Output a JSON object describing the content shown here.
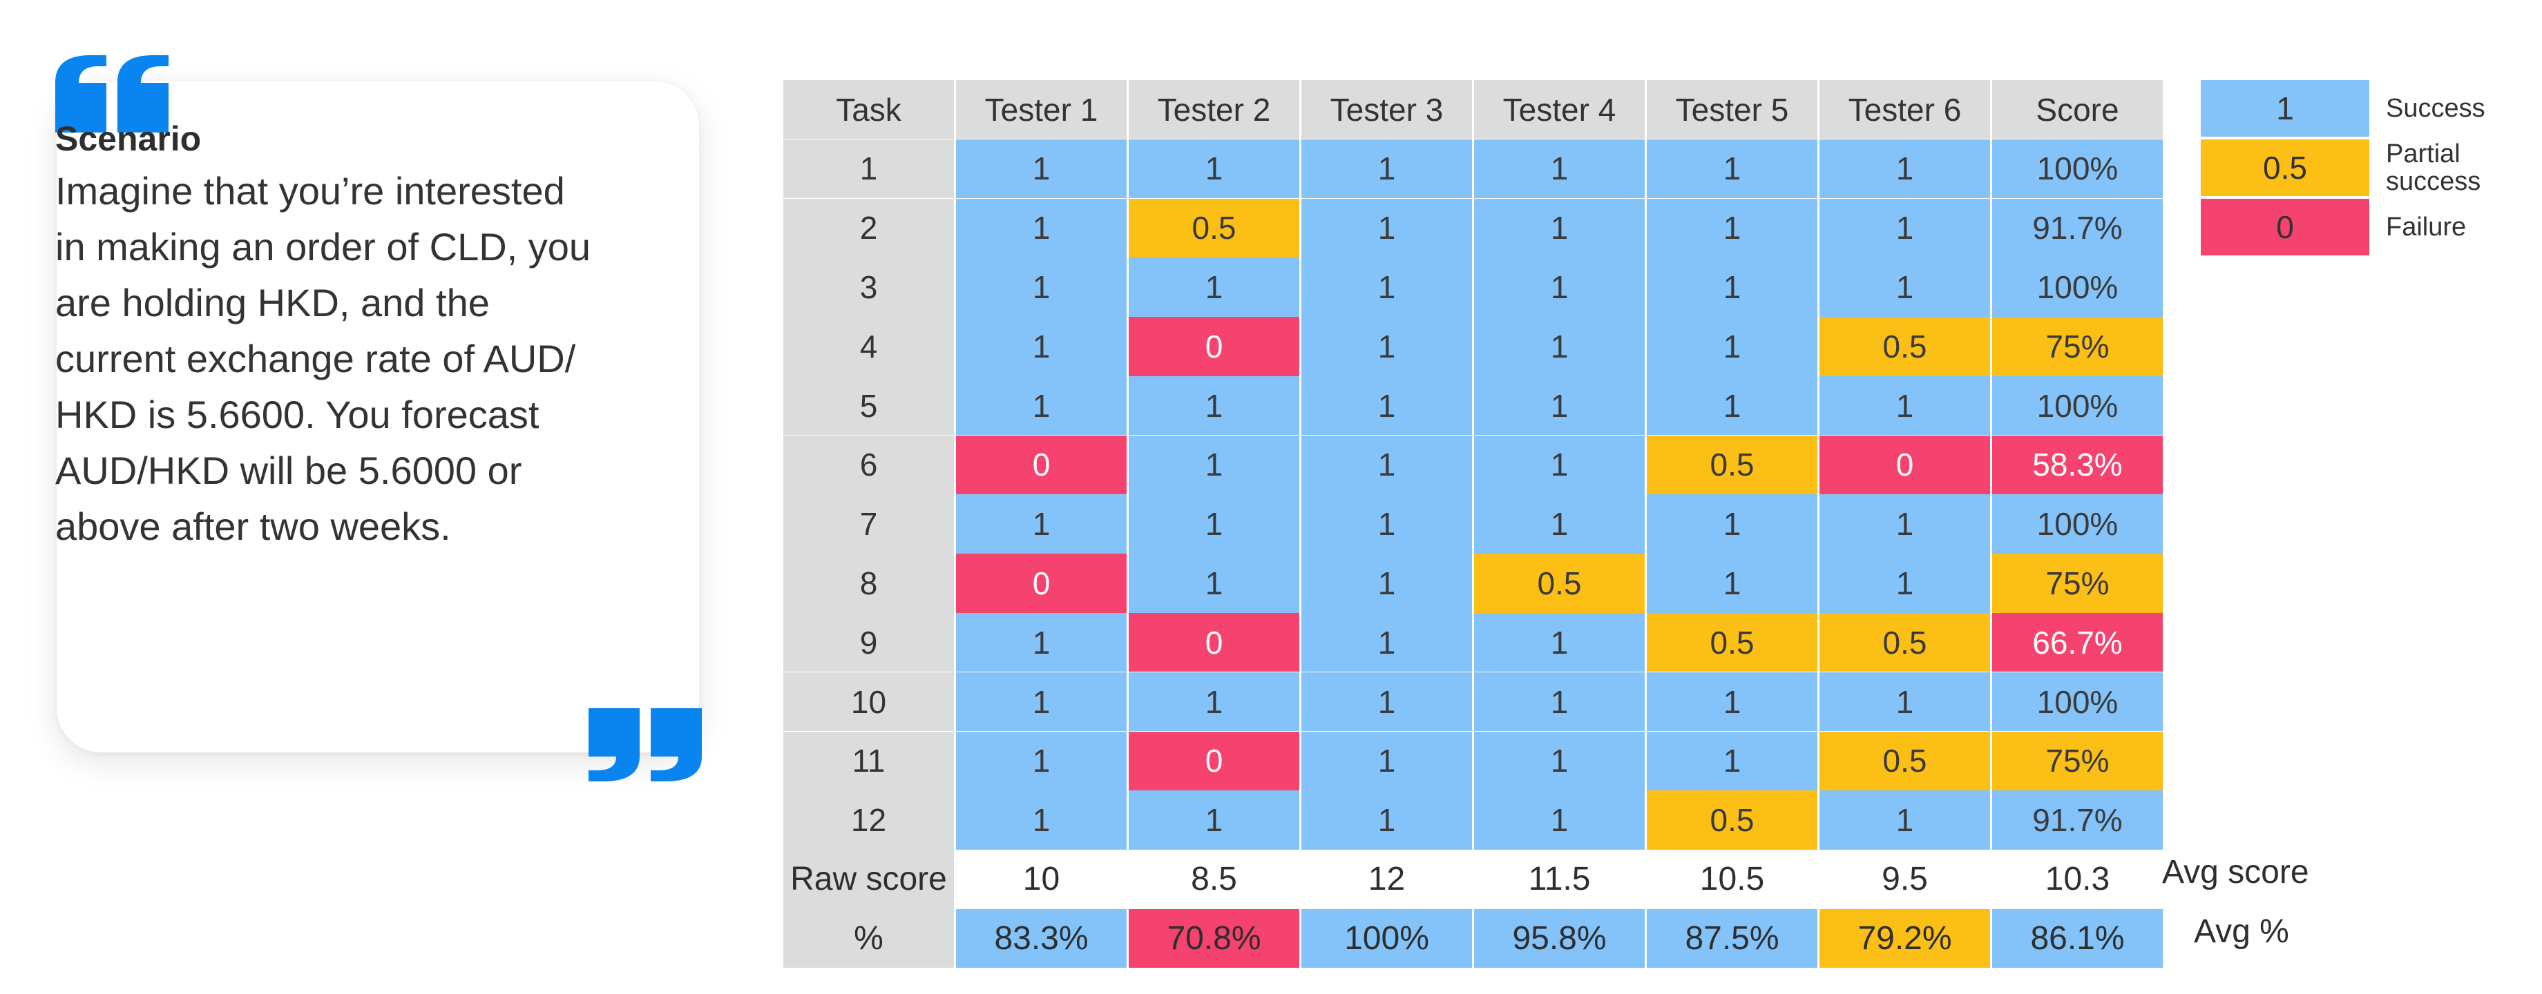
{
  "scenario": {
    "title": "Scenario",
    "lines": [
      "Imagine that you’re interested",
      "in making an order of CLD, you",
      "are holding HKD, and the",
      "current exchange rate of AUD/",
      "HKD is 5.6600. You forecast",
      "AUD/HKD will be 5.6000 or",
      "above after two weeks."
    ]
  },
  "colors": {
    "success": "#84c3f9",
    "partial": "#fcbf16",
    "failure": "#f5426e",
    "header": "#dcdcdc",
    "quote": "#0a84ee"
  },
  "icons": {
    "open_quote": "open-quote-icon",
    "close_quote": "close-quote-icon"
  },
  "table": {
    "headers": [
      "Task",
      "Tester 1",
      "Tester 2",
      "Tester 3",
      "Tester 4",
      "Tester 5",
      "Tester 6",
      "Score"
    ],
    "rows": [
      {
        "task": "1",
        "values": [
          "1",
          "1",
          "1",
          "1",
          "1",
          "1"
        ],
        "score": "100%"
      },
      {
        "task": "2",
        "values": [
          "1",
          "0.5",
          "1",
          "1",
          "1",
          "1"
        ],
        "score": "91.7%"
      },
      {
        "task": "3",
        "values": [
          "1",
          "1",
          "1",
          "1",
          "1",
          "1"
        ],
        "score": "100%"
      },
      {
        "task": "4",
        "values": [
          "1",
          "0",
          "1",
          "1",
          "1",
          "0.5"
        ],
        "score": "75%"
      },
      {
        "task": "5",
        "values": [
          "1",
          "1",
          "1",
          "1",
          "1",
          "1"
        ],
        "score": "100%"
      },
      {
        "task": "6",
        "values": [
          "0",
          "1",
          "1",
          "1",
          "0.5",
          "0"
        ],
        "score": "58.3%"
      },
      {
        "task": "7",
        "values": [
          "1",
          "1",
          "1",
          "1",
          "1",
          "1"
        ],
        "score": "100%"
      },
      {
        "task": "8",
        "values": [
          "0",
          "1",
          "1",
          "0.5",
          "1",
          "1"
        ],
        "score": "75%"
      },
      {
        "task": "9",
        "values": [
          "1",
          "0",
          "1",
          "1",
          "0.5",
          "0.5"
        ],
        "score": "66.7%"
      },
      {
        "task": "10",
        "values": [
          "1",
          "1",
          "1",
          "1",
          "1",
          "1"
        ],
        "score": "100%"
      },
      {
        "task": "11",
        "values": [
          "1",
          "0",
          "1",
          "1",
          "1",
          "0.5"
        ],
        "score": "75%"
      },
      {
        "task": "12",
        "values": [
          "1",
          "1",
          "1",
          "1",
          "0.5",
          "1"
        ],
        "score": "91.7%"
      }
    ],
    "score_status": [
      "success",
      "success",
      "success",
      "partial",
      "success",
      "failure",
      "success",
      "partial",
      "failure",
      "success",
      "partial",
      "success"
    ],
    "raw_score": {
      "label": "Raw score",
      "values": [
        "10",
        "8.5",
        "12",
        "11.5",
        "10.5",
        "9.5"
      ],
      "avg": "10.3",
      "avg_label": "Avg score"
    },
    "percent": {
      "label": "%",
      "values": [
        "83.3%",
        "70.8%",
        "100%",
        "95.8%",
        "87.5%",
        "79.2%"
      ],
      "status": [
        "success",
        "failure",
        "success",
        "success",
        "success",
        "partial"
      ],
      "avg": "86.1%",
      "avg_status": "success",
      "avg_label": "Avg %"
    }
  },
  "legend": [
    {
      "value": "1",
      "label": "Success",
      "status": "success"
    },
    {
      "value": "0.5",
      "label": "Partial success",
      "status": "partial"
    },
    {
      "value": "0",
      "label": "Failure",
      "status": "failure"
    }
  ]
}
